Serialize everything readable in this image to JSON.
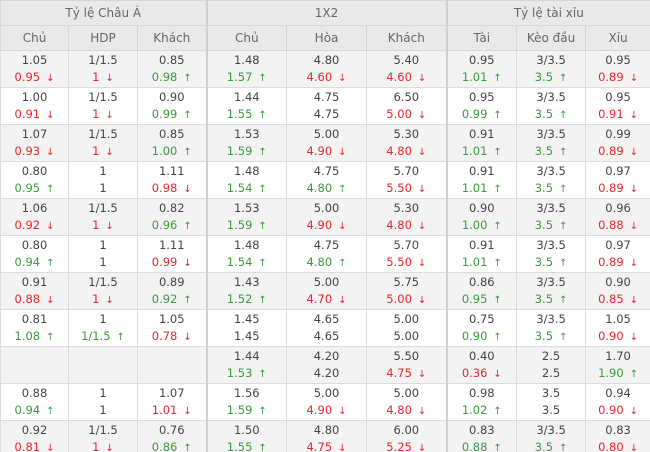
{
  "groups": [
    "Tỷ lệ Châu Á",
    "1X2",
    "Tỷ lệ tài xỉu"
  ],
  "columns": [
    "Chủ",
    "HDP",
    "Khách",
    "Chủ",
    "Hòa",
    "Khách",
    "Tài",
    "Kèo đầu",
    "Xỉu"
  ],
  "colors": {
    "down": "#e8262d",
    "up": "#3b9a3b"
  },
  "rows": [
    [
      [
        "1.05",
        "0.95",
        "down"
      ],
      [
        "1/1.5",
        "1",
        "down"
      ],
      [
        "0.85",
        "0.98",
        "up"
      ],
      [
        "1.48",
        "1.57",
        "up"
      ],
      [
        "4.80",
        "4.60",
        "down"
      ],
      [
        "5.40",
        "4.60",
        "down"
      ],
      [
        "0.95",
        "1.01",
        "up"
      ],
      [
        "3/3.5",
        "3.5",
        "up"
      ],
      [
        "0.95",
        "0.89",
        "down"
      ]
    ],
    [
      [
        "1.00",
        "0.91",
        "down"
      ],
      [
        "1/1.5",
        "1",
        "down"
      ],
      [
        "0.90",
        "0.99",
        "up"
      ],
      [
        "1.44",
        "1.55",
        "up"
      ],
      [
        "4.75",
        "4.75",
        null
      ],
      [
        "6.50",
        "5.00",
        "down"
      ],
      [
        "0.95",
        "0.99",
        "up"
      ],
      [
        "3/3.5",
        "3.5",
        "up"
      ],
      [
        "0.95",
        "0.91",
        "down"
      ]
    ],
    [
      [
        "1.07",
        "0.93",
        "down"
      ],
      [
        "1/1.5",
        "1",
        "down"
      ],
      [
        "0.85",
        "1.00",
        "up"
      ],
      [
        "1.53",
        "1.59",
        "up"
      ],
      [
        "5.00",
        "4.90",
        "down"
      ],
      [
        "5.30",
        "4.80",
        "down"
      ],
      [
        "0.91",
        "1.01",
        "up"
      ],
      [
        "3/3.5",
        "3.5",
        "up"
      ],
      [
        "0.99",
        "0.89",
        "down"
      ]
    ],
    [
      [
        "0.80",
        "0.95",
        "up"
      ],
      [
        "1",
        "1",
        null
      ],
      [
        "1.11",
        "0.98",
        "down"
      ],
      [
        "1.48",
        "1.54",
        "up"
      ],
      [
        "4.75",
        "4.80",
        "up"
      ],
      [
        "5.70",
        "5.50",
        "down"
      ],
      [
        "0.91",
        "1.01",
        "up"
      ],
      [
        "3/3.5",
        "3.5",
        "up"
      ],
      [
        "0.97",
        "0.89",
        "down"
      ]
    ],
    [
      [
        "1.06",
        "0.92",
        "down"
      ],
      [
        "1/1.5",
        "1",
        "down"
      ],
      [
        "0.82",
        "0.96",
        "up"
      ],
      [
        "1.53",
        "1.59",
        "up"
      ],
      [
        "5.00",
        "4.90",
        "down"
      ],
      [
        "5.30",
        "4.80",
        "down"
      ],
      [
        "0.90",
        "1.00",
        "up"
      ],
      [
        "3/3.5",
        "3.5",
        "up"
      ],
      [
        "0.96",
        "0.88",
        "down"
      ]
    ],
    [
      [
        "0.80",
        "0.94",
        "up"
      ],
      [
        "1",
        "1",
        null
      ],
      [
        "1.11",
        "0.99",
        "down"
      ],
      [
        "1.48",
        "1.54",
        "up"
      ],
      [
        "4.75",
        "4.80",
        "up"
      ],
      [
        "5.70",
        "5.50",
        "down"
      ],
      [
        "0.91",
        "1.01",
        "up"
      ],
      [
        "3/3.5",
        "3.5",
        "up"
      ],
      [
        "0.97",
        "0.89",
        "down"
      ]
    ],
    [
      [
        "0.91",
        "0.88",
        "down"
      ],
      [
        "1/1.5",
        "1",
        "down"
      ],
      [
        "0.89",
        "0.92",
        "up"
      ],
      [
        "1.43",
        "1.52",
        "up"
      ],
      [
        "5.00",
        "4.70",
        "down"
      ],
      [
        "5.75",
        "5.00",
        "down"
      ],
      [
        "0.86",
        "0.95",
        "up"
      ],
      [
        "3/3.5",
        "3.5",
        "up"
      ],
      [
        "0.90",
        "0.85",
        "down"
      ]
    ],
    [
      [
        "0.81",
        "1.08",
        "up"
      ],
      [
        "1",
        "1/1.5",
        "up"
      ],
      [
        "1.05",
        "0.78",
        "down"
      ],
      [
        "1.45",
        "1.45",
        null
      ],
      [
        "4.65",
        "4.65",
        null
      ],
      [
        "5.00",
        "5.00",
        null
      ],
      [
        "0.75",
        "0.90",
        "up"
      ],
      [
        "3/3.5",
        "3.5",
        "up"
      ],
      [
        "1.05",
        "0.90",
        "down"
      ]
    ],
    [
      [
        "",
        "",
        null
      ],
      [
        "",
        "",
        null
      ],
      [
        "",
        "",
        null
      ],
      [
        "1.44",
        "1.53",
        "up"
      ],
      [
        "4.20",
        "4.20",
        null
      ],
      [
        "5.50",
        "4.75",
        "down"
      ],
      [
        "0.40",
        "0.36",
        "down"
      ],
      [
        "2.5",
        "2.5",
        null
      ],
      [
        "1.70",
        "1.90",
        "up"
      ]
    ],
    [
      [
        "0.88",
        "0.94",
        "up"
      ],
      [
        "1",
        "1",
        null
      ],
      [
        "1.07",
        "1.01",
        "down"
      ],
      [
        "1.56",
        "1.59",
        "up"
      ],
      [
        "5.00",
        "4.90",
        "down"
      ],
      [
        "5.00",
        "4.80",
        "down"
      ],
      [
        "0.98",
        "1.02",
        "up"
      ],
      [
        "3.5",
        "3.5",
        null
      ],
      [
        "0.94",
        "0.90",
        "down"
      ]
    ],
    [
      [
        "0.92",
        "0.81",
        "down"
      ],
      [
        "1/1.5",
        "1",
        "down"
      ],
      [
        "0.76",
        "0.86",
        "up"
      ],
      [
        "1.50",
        "1.55",
        "up"
      ],
      [
        "4.80",
        "4.75",
        "down"
      ],
      [
        "6.00",
        "5.25",
        "down"
      ],
      [
        "0.83",
        "0.88",
        "up"
      ],
      [
        "3/3.5",
        "3.5",
        "up"
      ],
      [
        "0.83",
        "0.80",
        "down"
      ]
    ]
  ]
}
